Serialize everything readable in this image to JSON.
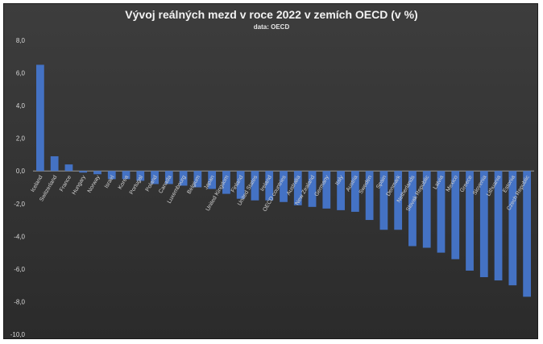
{
  "chart_data": {
    "type": "bar",
    "title": "Vývoj reálných mezd v roce 2022 v zemích OECD (v %)",
    "subtitle": "data: OECD",
    "xlabel": "",
    "ylabel": "",
    "ylim": [
      -10,
      8
    ],
    "yticks": [
      "8,0",
      "6,0",
      "4,0",
      "2,0",
      "0,0",
      "-2,0",
      "-4,0",
      "-6,0",
      "-8,0",
      "-10,0"
    ],
    "grid": false,
    "legend": "none",
    "bar_color": "#4472c4",
    "categories": [
      "Iceland",
      "Switzerland",
      "France",
      "Hungary",
      "Norway",
      "Israel",
      "Korea",
      "Portugal",
      "Poland",
      "Canada",
      "Luxembourg",
      "Belgium",
      "Japan",
      "United Kingdom",
      "Finland",
      "United States",
      "Ireland",
      "OECD countries",
      "Australia",
      "New Zealand",
      "Germany",
      "Italy",
      "Austria",
      "Sweden",
      "Spain",
      "Denmark",
      "Netherlands",
      "Slovak Republic",
      "Latvia",
      "Mexico",
      "Greece",
      "Slovenia",
      "Lithuania",
      "Estonia",
      "Czech Republic"
    ],
    "values": [
      6.5,
      0.9,
      0.4,
      -0.1,
      -0.2,
      -0.5,
      -0.5,
      -0.6,
      -0.8,
      -0.8,
      -0.9,
      -1.0,
      -1.1,
      -1.4,
      -1.7,
      -1.8,
      -1.8,
      -1.9,
      -2.1,
      -2.2,
      -2.3,
      -2.4,
      -2.5,
      -3.0,
      -3.6,
      -3.6,
      -4.6,
      -4.7,
      -5.0,
      -5.4,
      -6.1,
      -6.5,
      -6.7,
      -7.0,
      -7.7
    ]
  }
}
